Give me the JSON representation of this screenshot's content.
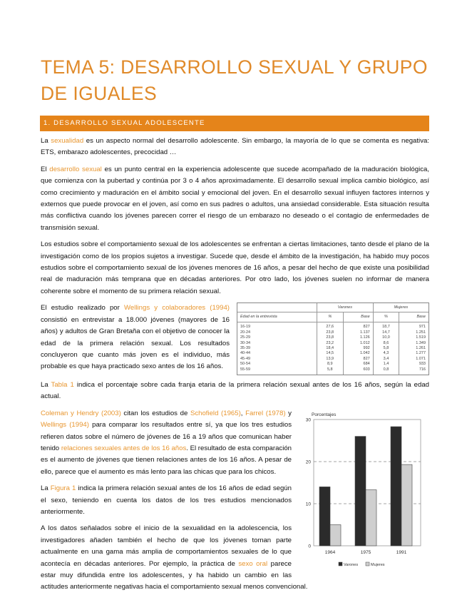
{
  "title": "TEMA 5: DESARROLLO SEXUAL Y GRUPO DE IGUALES",
  "section": "1. DESARROLLO SEXUAL ADOLESCENTE",
  "colors": {
    "accent": "#e5841a",
    "title": "#e08a2a",
    "highlight": "#e8962f"
  },
  "p1": [
    "La ",
    "sexualidad",
    " es un aspecto normal del desarrollo adolescente. Sin embargo, la mayoría de lo que se comenta es negativa: ETS, embarazo adolescentes, precocidad …"
  ],
  "p2": [
    "El ",
    "desarrollo sexual",
    " es un punto central en la experiencia adolescente que sucede acompañado de la maduración biológica, que comienza con la pubertad y continúa por 3 o 4 años aproximadamente. El desarrollo sexual implica cambio biológico, así como crecimiento y maduración en el ámbito social y emocional del joven. En el desarrollo sexual influyen factores internos y externos que puede provocar en el joven, así como en sus padres o adultos, una ansiedad considerable. Esta situación resulta más conflictiva cuando los jóvenes parecen correr el riesgo de un embarazo no deseado o el contagio de enfermedades de transmisión sexual."
  ],
  "p3": "Los estudios sobre el comportamiento sexual de los adolescentes se enfrentan a ciertas limitaciones, tanto desde el plano de la investigación como de los propios sujetos a investigar. Sucede que, desde el ámbito de la investigación, ha habido muy pocos estudios sobre el comportamiento sexual de los jóvenes menores de 16 años, a pesar del hecho de que existe una posibilidad real de maduración más temprana que en décadas anteriores. Por otro lado, los jóvenes suelen no informar de manera coherente sobre el momento de su primera relación sexual.",
  "p4": [
    "El estudio realizado por ",
    "Wellings y colaboradores (1994)",
    " consistió en entrevistar a 18.000 jóvenes (mayores de 16 años) y adultos de Gran Bretaña con el objetivo de conocer la edad de la primera relación sexual. Los resultados concluyeron que cuanto más joven es el individuo, más probable es que haya practicado sexo antes de los 16 años."
  ],
  "table": {
    "group_headers": [
      "Varones",
      "Mujeres"
    ],
    "columns": [
      "Edad en la entrevista",
      "%",
      "Base",
      "%",
      "Base"
    ],
    "rows": [
      [
        "16-19",
        "27,6",
        "827",
        "18,7",
        "971"
      ],
      [
        "20-24",
        "23,8",
        "1.137",
        "14,7",
        "1.251"
      ],
      [
        "25-29",
        "23,8",
        "1.126",
        "10,0",
        "1.519"
      ],
      [
        "30-34",
        "23,2",
        "1.012",
        "8,6",
        "1.349"
      ],
      [
        "35-39",
        "18,4",
        "992",
        "5,8",
        "1.261"
      ],
      [
        "40-44",
        "14,5",
        "1.042",
        "4,3",
        "1.277"
      ],
      [
        "45-49",
        "13,9",
        "827",
        "3,4",
        "1.071"
      ],
      [
        "50-54",
        "8,9",
        "684",
        "1,4",
        "933"
      ],
      [
        "55-59",
        "5,8",
        "603",
        "0,8",
        "716"
      ]
    ]
  },
  "p5": [
    "La ",
    "Tabla 1",
    " indica el porcentaje sobre cada franja etaria de la primera relación sexual antes de los 16 años, según la edad actual."
  ],
  "p6": [
    "Coleman y Hendry (2003)",
    " citan los estudios de ",
    "Schofield (1965)",
    ", ",
    "Farrel (1978)",
    " y ",
    "Wellings (1994)",
    " para comparar los resultados entre sí, ya que los tres estudios refieren datos sobre el número de jóvenes de 16 a 19 años que comunican haber tenido ",
    "relaciones sexuales antes de los 16 años",
    ". El resultado de esta comparación es el aumento de jóvenes que tienen relaciones antes de los 16 años. A pesar de ello, parece que el aumento es más lento para las chicas que para los chicos."
  ],
  "p7": [
    "La ",
    "Figura 1",
    " indica la primera relación sexual antes de los 16 años de edad según el sexo, teniendo en cuenta los datos de los tres estudios mencionados anteriormente."
  ],
  "p8": [
    "A los datos señalados sobre el inicio de la sexualidad en la adolescencia, los investigadores añaden también el hecho de que los jóvenes toman parte actualmente en una gama más amplia de comportamientos sexuales de lo que acontecía en décadas anteriores. Por ejemplo, la práctica de ",
    "sexo oral",
    " parece estar muy difundida entre los adolescentes, y ha habido un cambio en las actitudes anteriormente negativas hacia el comportamiento sexual menos convencional."
  ],
  "chart_data": {
    "type": "bar",
    "ylabel": "Porcentajes",
    "categories": [
      "1964",
      "1975",
      "1991"
    ],
    "series": [
      {
        "name": "Varones",
        "values": [
          14,
          26,
          28.3
        ],
        "color": "#2b2b2b"
      },
      {
        "name": "Mujeres",
        "values": [
          5,
          13.3,
          19.3
        ],
        "color": "#cfcfcf"
      }
    ],
    "ylim": [
      0,
      30
    ],
    "yticks": [
      0,
      10,
      20,
      30
    ],
    "grid": "dashed at 10 and 20",
    "legend": "bottom"
  }
}
